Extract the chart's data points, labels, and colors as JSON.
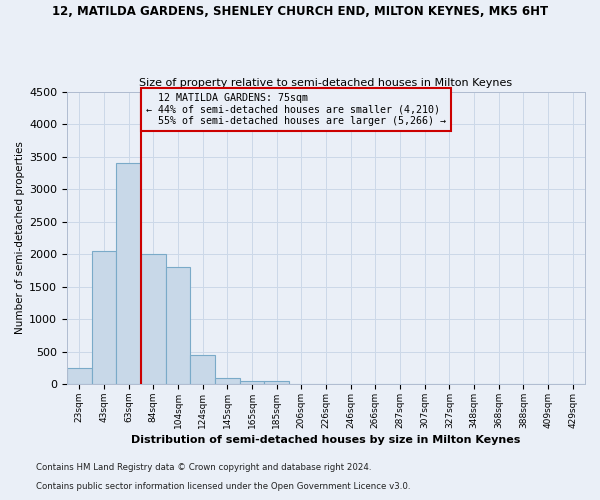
{
  "title1": "12, MATILDA GARDENS, SHENLEY CHURCH END, MILTON KEYNES, MK5 6HT",
  "title2": "Size of property relative to semi-detached houses in Milton Keynes",
  "xlabel": "Distribution of semi-detached houses by size in Milton Keynes",
  "ylabel": "Number of semi-detached properties",
  "footer1": "Contains HM Land Registry data © Crown copyright and database right 2024.",
  "footer2": "Contains public sector information licensed under the Open Government Licence v3.0.",
  "categories": [
    "23sqm",
    "43sqm",
    "63sqm",
    "84sqm",
    "104sqm",
    "124sqm",
    "145sqm",
    "165sqm",
    "185sqm",
    "206sqm",
    "226sqm",
    "246sqm",
    "266sqm",
    "287sqm",
    "307sqm",
    "327sqm",
    "348sqm",
    "368sqm",
    "388sqm",
    "409sqm",
    "429sqm"
  ],
  "values": [
    250,
    2050,
    3400,
    2000,
    1800,
    450,
    100,
    50,
    40,
    0,
    0,
    0,
    0,
    0,
    0,
    0,
    0,
    0,
    0,
    0,
    0
  ],
  "bar_color": "#c8d8e8",
  "bar_edge_color": "#7aaac8",
  "property_label": "12 MATILDA GARDENS: 75sqm",
  "pct_smaller": 44,
  "count_smaller": 4210,
  "pct_larger": 55,
  "count_larger": 5266,
  "vline_color": "#cc0000",
  "annotation_box_color": "#cc0000",
  "vline_x_index": 2.5,
  "ylim": [
    0,
    4500
  ],
  "yticks": [
    0,
    500,
    1000,
    1500,
    2000,
    2500,
    3000,
    3500,
    4000,
    4500
  ],
  "grid_color": "#ccd8e8",
  "background_color": "#eaeff7"
}
